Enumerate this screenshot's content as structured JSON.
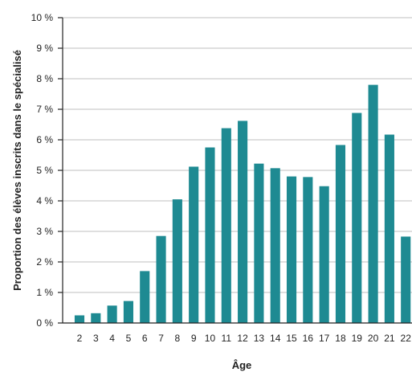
{
  "chart_data": {
    "type": "bar",
    "xlabel": "Âge",
    "ylabel": "Proportion des élèves inscrits dans le spécialisé",
    "categories": [
      "2",
      "3",
      "4",
      "5",
      "6",
      "7",
      "8",
      "9",
      "10",
      "11",
      "12",
      "13",
      "14",
      "15",
      "16",
      "17",
      "18",
      "19",
      "20",
      "21",
      "22"
    ],
    "values": [
      0.25,
      0.32,
      0.57,
      0.72,
      1.7,
      2.85,
      4.05,
      5.12,
      5.75,
      6.38,
      6.62,
      5.22,
      5.07,
      4.8,
      4.78,
      4.48,
      5.83,
      6.88,
      7.8,
      6.17,
      2.83
    ],
    "ylim": [
      0,
      10
    ],
    "yticks": [
      "0 %",
      "1 %",
      "2 %",
      "3 %",
      "4 %",
      "5 %",
      "6 %",
      "7 %",
      "8 %",
      "9 %",
      "10 %"
    ],
    "grid": true,
    "bar_color": "#1e8a92",
    "grid_color": "#cccccc",
    "axis_color": "#222222"
  }
}
